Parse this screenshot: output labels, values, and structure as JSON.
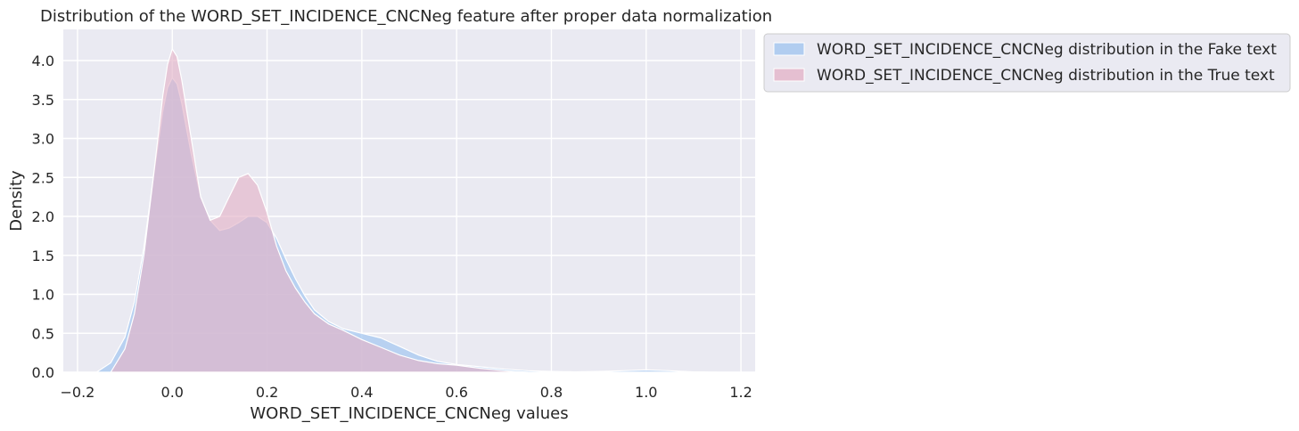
{
  "chart_data": {
    "type": "area",
    "title": "Distribution of the WORD_SET_INCIDENCE_CNCNeg feature after proper data normalization",
    "xlabel": "WORD_SET_INCIDENCE_CNCNeg values",
    "ylabel": "Density",
    "xlim": [
      -0.23,
      1.23
    ],
    "ylim": [
      0,
      4.4
    ],
    "xticks": [
      -0.2,
      0.0,
      0.2,
      0.4,
      0.6,
      0.8,
      1.0,
      1.2
    ],
    "xtick_labels": [
      "−0.2",
      "0.0",
      "0.2",
      "0.4",
      "0.6",
      "0.8",
      "1.0",
      "1.2"
    ],
    "yticks": [
      0.0,
      0.5,
      1.0,
      1.5,
      2.0,
      2.5,
      3.0,
      3.5,
      4.0
    ],
    "ytick_labels": [
      "0.0",
      "0.5",
      "1.0",
      "1.5",
      "2.0",
      "2.5",
      "3.0",
      "3.5",
      "4.0"
    ],
    "grid": true,
    "legend_position": "outside-top-right",
    "series": [
      {
        "name": "WORD_SET_INCIDENCE_CNCNeg distribution in the Fake text",
        "color": "#a7c8f0",
        "x": [
          -0.16,
          -0.13,
          -0.1,
          -0.08,
          -0.06,
          -0.04,
          -0.02,
          -0.01,
          0.0,
          0.01,
          0.02,
          0.04,
          0.06,
          0.08,
          0.1,
          0.12,
          0.14,
          0.16,
          0.18,
          0.2,
          0.22,
          0.24,
          0.26,
          0.28,
          0.3,
          0.33,
          0.36,
          0.4,
          0.44,
          0.48,
          0.52,
          0.56,
          0.6,
          0.65,
          0.7,
          0.75,
          0.8,
          0.85,
          0.9,
          0.95,
          1.0,
          1.05,
          1.1,
          1.15
        ],
        "y": [
          0.0,
          0.12,
          0.45,
          0.9,
          1.6,
          2.5,
          3.35,
          3.65,
          3.78,
          3.7,
          3.45,
          2.8,
          2.25,
          1.95,
          1.82,
          1.85,
          1.92,
          2.0,
          2.0,
          1.92,
          1.72,
          1.45,
          1.2,
          0.98,
          0.8,
          0.65,
          0.56,
          0.5,
          0.44,
          0.33,
          0.22,
          0.14,
          0.1,
          0.07,
          0.04,
          0.02,
          0.01,
          0.005,
          0.01,
          0.02,
          0.03,
          0.02,
          0.005,
          0.0
        ]
      },
      {
        "name": "WORD_SET_INCIDENCE_CNCNeg distribution in the True text",
        "color": "#e3b4c8",
        "x": [
          -0.13,
          -0.1,
          -0.08,
          -0.06,
          -0.04,
          -0.02,
          -0.01,
          0.0,
          0.01,
          0.02,
          0.04,
          0.06,
          0.08,
          0.1,
          0.12,
          0.14,
          0.16,
          0.18,
          0.2,
          0.22,
          0.24,
          0.26,
          0.28,
          0.3,
          0.33,
          0.36,
          0.4,
          0.44,
          0.48,
          0.52,
          0.56,
          0.6,
          0.65,
          0.7,
          0.75
        ],
        "y": [
          0.0,
          0.3,
          0.75,
          1.5,
          2.5,
          3.55,
          3.95,
          4.15,
          4.05,
          3.75,
          3.0,
          2.25,
          1.95,
          2.0,
          2.25,
          2.5,
          2.55,
          2.4,
          2.05,
          1.62,
          1.3,
          1.08,
          0.9,
          0.75,
          0.62,
          0.54,
          0.42,
          0.32,
          0.22,
          0.15,
          0.11,
          0.09,
          0.05,
          0.02,
          0.0
        ]
      }
    ]
  }
}
